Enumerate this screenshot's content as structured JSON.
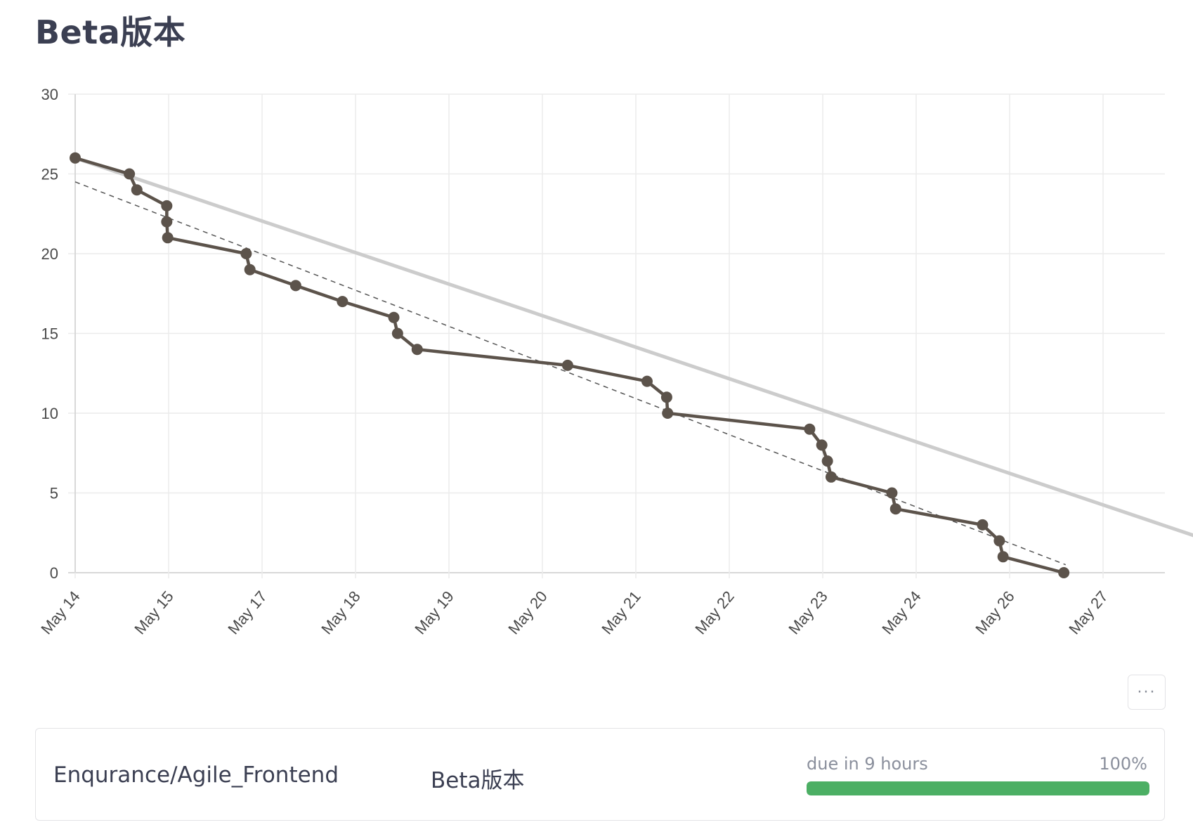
{
  "page": {
    "title": "Beta版本"
  },
  "chart_data": {
    "type": "line",
    "title": "",
    "xlabel": "",
    "ylabel": "",
    "ylim": [
      0,
      30
    ],
    "yticks": [
      0,
      5,
      10,
      15,
      20,
      25,
      30
    ],
    "xlim": [
      0,
      13.15
    ],
    "xtick_labels": [
      {
        "x": 0,
        "label": "May 14"
      },
      {
        "x": 1,
        "label": "May 15"
      },
      {
        "x": 2,
        "label": "May 17"
      },
      {
        "x": 3,
        "label": "May 18"
      },
      {
        "x": 4,
        "label": "May 19"
      },
      {
        "x": 5,
        "label": "May 20"
      },
      {
        "x": 6,
        "label": "May 21"
      },
      {
        "x": 7,
        "label": "May 22"
      },
      {
        "x": 8,
        "label": "May 23"
      },
      {
        "x": 9,
        "label": "May 24"
      },
      {
        "x": 10,
        "label": "May 26"
      },
      {
        "x": 11,
        "label": "May 27"
      }
    ],
    "grid": true,
    "legend": "none",
    "series": [
      {
        "role": "ideal",
        "style": "solid-light",
        "color": "#cccccc",
        "points": [
          [
            0,
            26
          ],
          [
            13.15,
            0
          ]
        ]
      },
      {
        "role": "trend",
        "style": "dashed",
        "color": "#555555",
        "points": [
          [
            0,
            24.5
          ],
          [
            10.6,
            0.5
          ]
        ]
      },
      {
        "role": "actual",
        "style": "solid-markers",
        "color": "#5c534b",
        "points": [
          [
            0,
            26
          ],
          [
            0.58,
            25
          ],
          [
            0.66,
            24
          ],
          [
            0.98,
            23
          ],
          [
            0.98,
            22
          ],
          [
            0.99,
            21
          ],
          [
            1.83,
            20
          ],
          [
            1.87,
            19
          ],
          [
            2.36,
            18
          ],
          [
            2.86,
            17
          ],
          [
            3.41,
            16
          ],
          [
            3.45,
            15
          ],
          [
            3.66,
            14
          ],
          [
            5.27,
            13
          ],
          [
            6.12,
            12
          ],
          [
            6.33,
            11
          ],
          [
            6.34,
            10
          ],
          [
            7.86,
            9
          ],
          [
            7.99,
            8
          ],
          [
            8.05,
            7
          ],
          [
            8.09,
            6
          ],
          [
            8.74,
            5
          ],
          [
            8.78,
            4
          ],
          [
            9.71,
            3
          ],
          [
            9.89,
            2
          ],
          [
            9.93,
            1
          ],
          [
            10.58,
            0
          ]
        ]
      }
    ]
  },
  "toolbar": {
    "more_label": "···"
  },
  "card": {
    "repo": "Enqurance/Agile_Frontend",
    "milestone": "Beta版本",
    "due": "due in 9 hours",
    "percent_label": "100%",
    "progress": 1.0,
    "progress_color": "#4caf64"
  }
}
